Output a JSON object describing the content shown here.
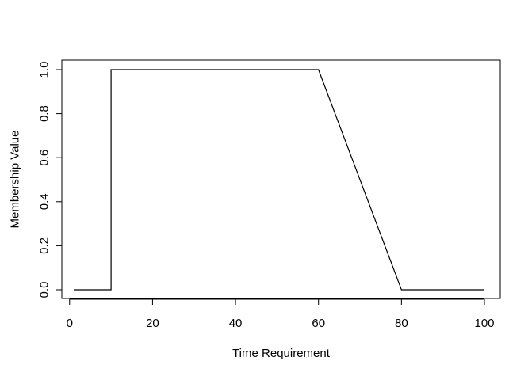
{
  "chart_data": {
    "type": "line",
    "title": "",
    "xlabel": "Time Requirement",
    "ylabel": "Membership Value",
    "xlim": [
      1,
      100
    ],
    "ylim": [
      0,
      1
    ],
    "grid": false,
    "legend": "none",
    "x_ticks": [
      0,
      20,
      40,
      60,
      80,
      100
    ],
    "x_tick_labels": [
      "0",
      "20",
      "40",
      "60",
      "80",
      "100"
    ],
    "y_ticks": [
      0.0,
      0.2,
      0.4,
      0.6,
      0.8,
      1.0
    ],
    "y_tick_labels": [
      "0.0",
      "0.2",
      "0.4",
      "0.6",
      "0.8",
      "1.0"
    ],
    "series": [
      {
        "x": [
          1,
          10,
          10,
          60,
          80,
          100
        ],
        "y": [
          0,
          0,
          1,
          1,
          0,
          0
        ],
        "color": "#000000"
      }
    ]
  }
}
